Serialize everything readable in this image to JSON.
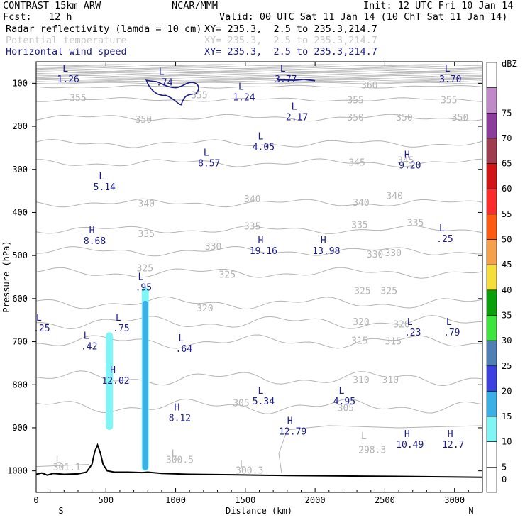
{
  "header": {
    "title": "CONTRAST 15km ARW",
    "center": "NCAR/MMM",
    "init": "Init: 12 UTC Fri 10 Jan 14",
    "fcst": "Fcst:   12 h",
    "valid": "Valid: 00 UTC Sat 11 Jan 14 (10 ChT Sat 11 Jan 14)",
    "fields": [
      {
        "name": "Radar reflectivity (lamda = 10 cm)",
        "xy": "XY= 235.3,  2.5 to 235.3,214.7",
        "color": "#000000"
      },
      {
        "name": "Potential temperature",
        "xy": "XY= 235.3,  2.5 to 235.3,214.7",
        "color": "#c8c8c8"
      },
      {
        "name": "Horizontal wind speed",
        "xy": "XY= 235.3,  2.5 to 235.3,214.7",
        "color": "#1c1c8c"
      }
    ]
  },
  "chart_data": {
    "type": "cross-section",
    "xlabel": "Distance (km)",
    "ylabel": "Pressure (hPa)",
    "xlim": [
      0,
      3200
    ],
    "ylim": [
      1050,
      50
    ],
    "x_ticks": [
      0,
      500,
      1000,
      1500,
      2000,
      2500,
      3000
    ],
    "y_ticks": [
      100,
      200,
      300,
      400,
      500,
      600,
      700,
      800,
      900,
      1000
    ],
    "x_end_labels": {
      "left": "S",
      "right": "N"
    },
    "colorbar": {
      "unit": "dBZ",
      "levels": [
        {
          "label": "0",
          "color": "#ffffff"
        },
        {
          "label": "5",
          "color": "#ffffff"
        },
        {
          "label": "10",
          "color": "#7ff5f5"
        },
        {
          "label": "15",
          "color": "#3ab0e6"
        },
        {
          "label": "20",
          "color": "#3c40e0"
        },
        {
          "label": "25",
          "color": "#4f7fb5"
        },
        {
          "label": "30",
          "color": "#3ce63c"
        },
        {
          "label": "35",
          "color": "#0aa00a"
        },
        {
          "label": "40",
          "color": "#f5dd3a"
        },
        {
          "label": "45",
          "color": "#f5a04a"
        },
        {
          "label": "50",
          "color": "#ff5a10"
        },
        {
          "label": "55",
          "color": "#ff2a2a"
        },
        {
          "label": "60",
          "color": "#d21414"
        },
        {
          "label": "65",
          "color": "#a03c50"
        },
        {
          "label": "70",
          "color": "#8c3c9c"
        },
        {
          "label": "75",
          "color": "#c08ac8"
        },
        {
          "label": "",
          "color": "#ffffff"
        }
      ]
    },
    "theta_labels": [
      {
        "text": "360",
        "x": 2390,
        "p": 105
      },
      {
        "text": "355",
        "x": 300,
        "p": 135
      },
      {
        "text": "355",
        "x": 1170,
        "p": 128
      },
      {
        "text": "355",
        "x": 2290,
        "p": 140
      },
      {
        "text": "355",
        "x": 2960,
        "p": 140
      },
      {
        "text": "350",
        "x": 770,
        "p": 185
      },
      {
        "text": "350",
        "x": 2290,
        "p": 180
      },
      {
        "text": "350",
        "x": 2640,
        "p": 180
      },
      {
        "text": "350",
        "x": 3040,
        "p": 180
      },
      {
        "text": "345",
        "x": 2300,
        "p": 285
      },
      {
        "text": "345",
        "x": 2650,
        "p": 280
      },
      {
        "text": "340",
        "x": 790,
        "p": 380
      },
      {
        "text": "340",
        "x": 1550,
        "p": 370
      },
      {
        "text": "340",
        "x": 2330,
        "p": 378
      },
      {
        "text": "340",
        "x": 2570,
        "p": 362
      },
      {
        "text": "335",
        "x": 790,
        "p": 450
      },
      {
        "text": "335",
        "x": 1550,
        "p": 433
      },
      {
        "text": "335",
        "x": 2320,
        "p": 430
      },
      {
        "text": "335",
        "x": 2720,
        "p": 425
      },
      {
        "text": "330",
        "x": 1270,
        "p": 480
      },
      {
        "text": "330",
        "x": 2430,
        "p": 498
      },
      {
        "text": "330",
        "x": 2560,
        "p": 495
      },
      {
        "text": "325",
        "x": 780,
        "p": 530
      },
      {
        "text": "325",
        "x": 1370,
        "p": 545
      },
      {
        "text": "325",
        "x": 2340,
        "p": 583
      },
      {
        "text": "325",
        "x": 2530,
        "p": 583
      },
      {
        "text": "320",
        "x": 1210,
        "p": 623
      },
      {
        "text": "320",
        "x": 2330,
        "p": 655
      },
      {
        "text": "320",
        "x": 2620,
        "p": 660
      },
      {
        "text": "315",
        "x": 2320,
        "p": 698
      },
      {
        "text": "315",
        "x": 2560,
        "p": 700
      },
      {
        "text": "310",
        "x": 2330,
        "p": 790
      },
      {
        "text": "310",
        "x": 2540,
        "p": 790
      },
      {
        "text": "305",
        "x": 1470,
        "p": 843
      },
      {
        "text": "305",
        "x": 2220,
        "p": 855
      },
      {
        "text": "300.5",
        "x": 1030,
        "p": 975
      },
      {
        "text": "300.3",
        "x": 1530,
        "p": 1000
      },
      {
        "text": "298.3",
        "x": 2410,
        "p": 952
      },
      {
        "text": "301.1",
        "x": 220,
        "p": 992
      }
    ],
    "theta_extrema": [
      {
        "type": "L",
        "x": 160,
        "p": 975
      },
      {
        "type": "L",
        "x": 990,
        "p": 960
      },
      {
        "type": "L",
        "x": 1480,
        "p": 985
      },
      {
        "type": "L",
        "x": 2350,
        "p": 920
      }
    ],
    "wind_extrema": [
      {
        "type": "L",
        "value": "1.26",
        "x": 230,
        "p": 80
      },
      {
        "type": "L",
        "value": ".74",
        "x": 920,
        "p": 87
      },
      {
        "type": "L",
        "value": "3.77",
        "x": 1790,
        "p": 80
      },
      {
        "type": "L",
        "value": "3.70",
        "x": 2970,
        "p": 80
      },
      {
        "type": "L",
        "value": "1.24",
        "x": 1490,
        "p": 122
      },
      {
        "type": "L",
        "value": "2.17",
        "x": 1870,
        "p": 168
      },
      {
        "type": "L",
        "value": "4.05",
        "x": 1630,
        "p": 237
      },
      {
        "type": "L",
        "value": "8.57",
        "x": 1240,
        "p": 275
      },
      {
        "type": "H",
        "value": "9.20",
        "x": 2680,
        "p": 280
      },
      {
        "type": "L",
        "value": "5.14",
        "x": 490,
        "p": 330
      },
      {
        "type": "H",
        "value": "8.68",
        "x": 420,
        "p": 455
      },
      {
        "type": "H",
        "value": "19.16",
        "x": 1630,
        "p": 478
      },
      {
        "type": "H",
        "value": "13.98",
        "x": 2080,
        "p": 478
      },
      {
        "type": "L",
        "value": ".25",
        "x": 2930,
        "p": 450
      },
      {
        "type": "L",
        "value": ".95",
        "x": 770,
        "p": 563
      },
      {
        "type": "L",
        "value": ".25",
        "x": 40,
        "p": 658
      },
      {
        "type": "L",
        "value": ".75",
        "x": 610,
        "p": 658
      },
      {
        "type": "L",
        "value": ".42",
        "x": 380,
        "p": 700
      },
      {
        "type": "L",
        "value": ".64",
        "x": 1060,
        "p": 706
      },
      {
        "type": "L",
        "value": ".23",
        "x": 2700,
        "p": 668
      },
      {
        "type": "L",
        "value": ".79",
        "x": 2980,
        "p": 668
      },
      {
        "type": "H",
        "value": "12.02",
        "x": 570,
        "p": 780
      },
      {
        "type": "L",
        "value": "5.34",
        "x": 1630,
        "p": 828
      },
      {
        "type": "L",
        "value": "4.95",
        "x": 2210,
        "p": 828
      },
      {
        "type": "H",
        "value": "8.12",
        "x": 1030,
        "p": 866
      },
      {
        "type": "H",
        "value": "12.79",
        "x": 1840,
        "p": 898
      },
      {
        "type": "H",
        "value": "10.49",
        "x": 2680,
        "p": 928
      },
      {
        "type": "H",
        "value": "12.7",
        "x": 2990,
        "p": 928
      }
    ],
    "reflectivity_cells": [
      {
        "x": 525,
        "p_top": 678,
        "p_bottom": 905,
        "dbz": 10
      },
      {
        "x": 782,
        "p_top": 574,
        "p_bottom": 1000,
        "dbz": 10
      },
      {
        "x": 782,
        "p_top": 605,
        "p_bottom": 998,
        "dbz": 15
      }
    ],
    "terrain": [
      [
        0,
        1008
      ],
      [
        40,
        1005
      ],
      [
        80,
        1010
      ],
      [
        120,
        1006
      ],
      [
        200,
        1008
      ],
      [
        300,
        1007
      ],
      [
        360,
        1003
      ],
      [
        400,
        985
      ],
      [
        420,
        955
      ],
      [
        440,
        940
      ],
      [
        460,
        958
      ],
      [
        480,
        985
      ],
      [
        510,
        1000
      ],
      [
        560,
        1003
      ],
      [
        660,
        1003
      ],
      [
        760,
        1004
      ],
      [
        800,
        1003
      ],
      [
        900,
        1006
      ],
      [
        1100,
        1008
      ],
      [
        1400,
        1009
      ],
      [
        1800,
        1011
      ],
      [
        2200,
        1012
      ],
      [
        2600,
        1013
      ],
      [
        2900,
        1014
      ],
      [
        3200,
        1015
      ]
    ]
  }
}
